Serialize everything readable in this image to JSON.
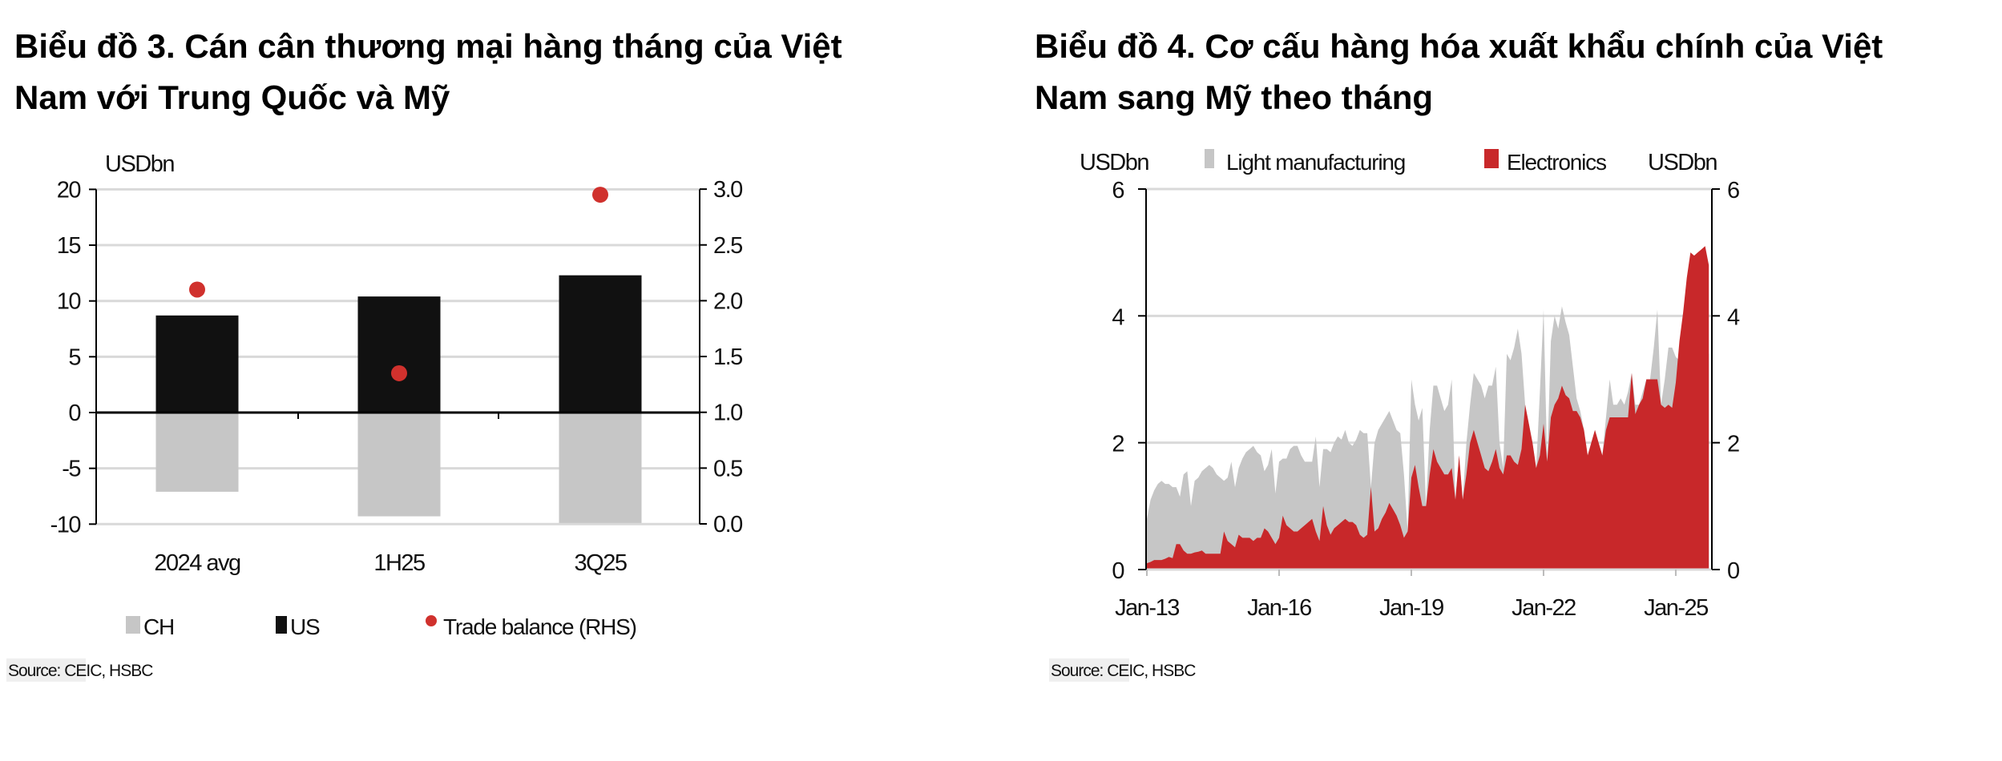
{
  "charts_titles": {
    "left": [
      "Biểu đồ 3. Cán cân thương mại hàng tháng của Việt",
      "Nam với Trung Quốc và Mỹ"
    ],
    "right": [
      "Biểu đồ 4. Cơ cấu hàng hóa xuất khẩu chính của Việt",
      "Nam sang Mỹ theo tháng"
    ]
  },
  "chart_data": [
    {
      "type": "bar",
      "title": "Biểu đồ 3. Cán cân thương mại hàng tháng của Việt Nam với Trung Quốc và Mỹ",
      "ylabel": "USDbn",
      "categories": [
        "2024 avg",
        "1H25",
        "3Q25"
      ],
      "series": [
        {
          "name": "CH",
          "type": "bar",
          "axis": "left",
          "color": "#c6c6c6",
          "values": [
            -7.1,
            -9.3,
            -9.9
          ]
        },
        {
          "name": "US",
          "type": "bar",
          "axis": "left",
          "color": "#111111",
          "values": [
            8.7,
            10.4,
            12.3
          ]
        },
        {
          "name": "Trade balance (RHS)",
          "type": "scatter",
          "axis": "right",
          "color": "#d0312d",
          "values": [
            2.1,
            1.35,
            2.95
          ]
        }
      ],
      "ylim": [
        -10,
        20
      ],
      "yticks": [
        "20",
        "15",
        "10",
        "5",
        "0",
        "-5",
        "-10"
      ],
      "y2lim": [
        0,
        3
      ],
      "y2ticks": [
        "3.0",
        "2.5",
        "2.0",
        "1.5",
        "1.0",
        "0.5",
        "0.0"
      ],
      "grid": true,
      "legend": "bottom",
      "source": "Source: CEIC, HSBC"
    },
    {
      "type": "area",
      "title": "Biểu đồ 4. Cơ cấu hàng hóa xuất khẩu chính của Việt Nam sang Mỹ theo tháng",
      "ylabel": "USDbn",
      "y2label": "USDbn",
      "x_start": "Jan-13",
      "x_frequency": "monthly",
      "xticks": [
        "Jan-13",
        "Jan-16",
        "Jan-19",
        "Jan-22",
        "Jan-25"
      ],
      "ylim": [
        0,
        6
      ],
      "yticks": [
        "6",
        "4",
        "2",
        "0"
      ],
      "grid": true,
      "legend": "top",
      "series": [
        {
          "name": "Light manufacturing",
          "color": "#c6c6c6",
          "values": [
            0.8,
            1.1,
            1.25,
            1.35,
            1.4,
            1.35,
            1.35,
            1.3,
            1.3,
            1.15,
            1.5,
            1.55,
            1.0,
            1.4,
            1.45,
            1.55,
            1.6,
            1.65,
            1.6,
            1.5,
            1.45,
            1.4,
            1.45,
            1.7,
            1.3,
            1.6,
            1.75,
            1.85,
            1.9,
            1.95,
            1.85,
            1.8,
            1.55,
            1.65,
            1.9,
            1.2,
            1.7,
            1.75,
            1.75,
            1.9,
            1.95,
            1.95,
            1.8,
            1.7,
            1.7,
            1.7,
            2.1,
            1.3,
            1.9,
            1.9,
            1.85,
            2.0,
            2.1,
            2.05,
            2.2,
            2.0,
            1.95,
            2.05,
            2.2,
            2.15,
            2.15,
            1.3,
            2.0,
            2.2,
            2.3,
            2.4,
            2.5,
            2.35,
            2.2,
            2.15,
            1.5,
            0.6,
            3.0,
            2.6,
            2.35,
            2.55,
            1.0,
            2.2,
            2.9,
            2.9,
            2.7,
            2.5,
            2.6,
            3.0,
            1.1,
            1.8,
            1.1,
            2.0,
            2.6,
            3.1,
            3.0,
            2.9,
            2.7,
            2.9,
            2.9,
            3.2,
            2.0,
            1.6,
            3.4,
            3.3,
            3.5,
            3.8,
            3.4,
            2.6,
            2.3,
            2.0,
            1.6,
            2.8,
            4.1,
            1.7,
            3.6,
            4.0,
            3.8,
            4.15,
            3.9,
            3.7,
            3.2,
            2.7,
            2.5,
            2.2,
            1.8,
            2.0,
            2.2,
            2.0,
            1.8,
            2.4,
            3.0,
            2.6,
            2.6,
            2.7,
            2.6,
            2.8,
            3.1,
            2.6,
            2.6,
            2.8,
            3.0,
            3.0,
            3.5,
            4.1,
            2.6,
            3.0,
            3.5,
            3.5,
            3.35,
            3.3,
            3.5,
            3.6,
            3.6,
            3.6,
            3.5,
            3.5,
            3.5,
            3.4
          ]
        },
        {
          "name": "Electronics",
          "color": "#c8282a",
          "values": [
            0.1,
            0.12,
            0.15,
            0.15,
            0.15,
            0.17,
            0.2,
            0.18,
            0.4,
            0.4,
            0.3,
            0.25,
            0.25,
            0.27,
            0.28,
            0.3,
            0.25,
            0.25,
            0.25,
            0.25,
            0.25,
            0.6,
            0.45,
            0.4,
            0.35,
            0.55,
            0.5,
            0.5,
            0.5,
            0.45,
            0.5,
            0.5,
            0.65,
            0.6,
            0.5,
            0.4,
            0.5,
            0.85,
            0.7,
            0.65,
            0.6,
            0.6,
            0.65,
            0.7,
            0.75,
            0.8,
            0.6,
            0.45,
            1.0,
            0.7,
            0.55,
            0.65,
            0.7,
            0.75,
            0.8,
            0.75,
            0.75,
            0.7,
            0.55,
            0.5,
            0.55,
            1.3,
            0.6,
            0.65,
            0.8,
            0.9,
            1.05,
            0.95,
            0.85,
            0.7,
            0.5,
            0.6,
            1.45,
            1.65,
            1.3,
            1.0,
            1.0,
            1.5,
            1.9,
            1.7,
            1.6,
            1.5,
            1.5,
            1.6,
            1.1,
            1.8,
            1.1,
            1.5,
            2.0,
            2.2,
            2.0,
            1.8,
            1.6,
            1.55,
            1.7,
            1.9,
            1.6,
            1.5,
            1.8,
            1.8,
            1.7,
            1.65,
            1.9,
            2.6,
            2.3,
            2.0,
            1.6,
            1.8,
            2.3,
            1.7,
            2.4,
            2.6,
            2.7,
            2.9,
            2.75,
            2.7,
            2.5,
            2.5,
            2.4,
            2.2,
            1.8,
            2.0,
            2.2,
            2.0,
            1.8,
            2.2,
            2.4,
            2.4,
            2.4,
            2.4,
            2.4,
            2.4,
            3.1,
            2.45,
            2.6,
            2.7,
            3.0,
            3.0,
            3.0,
            3.0,
            2.6,
            2.55,
            2.6,
            2.55,
            2.95,
            3.6,
            4.05,
            4.6,
            5.0,
            4.95,
            5.0,
            5.05,
            5.1,
            4.8
          ]
        }
      ],
      "source": "Source: CEIC, HSBC"
    }
  ]
}
